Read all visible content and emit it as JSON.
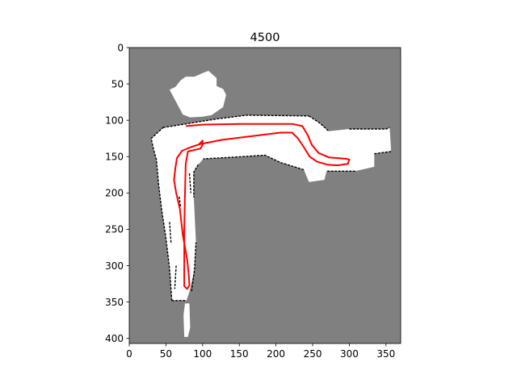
{
  "chart_data": {
    "type": "heatmap",
    "title": "4500",
    "xlabel": "",
    "ylabel": "",
    "xlim": [
      0,
      370
    ],
    "ylim": [
      407,
      0
    ],
    "xticks": [
      0,
      50,
      100,
      150,
      200,
      250,
      300,
      350
    ],
    "yticks": [
      0,
      50,
      100,
      150,
      200,
      250,
      300,
      350,
      400
    ],
    "grid": false,
    "legend": "none",
    "colors": {
      "unknown": "#808080",
      "free": "#ffffff",
      "occupied": "#000000",
      "trajectory": "#ff0000"
    },
    "map_regions": {
      "free_polygons": [
        [
          [
            46,
            110
          ],
          [
            120,
            98
          ],
          [
            160,
            93
          ],
          [
            245,
            94
          ],
          [
            260,
            104
          ],
          [
            272,
            115
          ],
          [
            300,
            112
          ],
          [
            350,
            112
          ],
          [
            355,
            110
          ],
          [
            357,
            143
          ],
          [
            334,
            146
          ],
          [
            334,
            164
          ],
          [
            308,
            170
          ],
          [
            269,
            170
          ],
          [
            266,
            182
          ],
          [
            245,
            185
          ],
          [
            238,
            168
          ],
          [
            206,
            158
          ],
          [
            185,
            148
          ],
          [
            138,
            151
          ],
          [
            101,
            153
          ],
          [
            94,
            161
          ],
          [
            88,
            171
          ],
          [
            88,
            206
          ],
          [
            91,
            268
          ],
          [
            89,
            305
          ],
          [
            82,
            336
          ],
          [
            78,
            348
          ],
          [
            58,
            348
          ],
          [
            55,
            304
          ],
          [
            50,
            262
          ],
          [
            44,
            222
          ],
          [
            40,
            188
          ],
          [
            37,
            154
          ],
          [
            33,
            140
          ],
          [
            30,
            125
          ]
        ],
        [
          [
            73,
            92
          ],
          [
            55,
            58
          ],
          [
            63,
            54
          ],
          [
            70,
            45
          ],
          [
            77,
            40
          ],
          [
            89,
            40
          ],
          [
            100,
            35
          ],
          [
            108,
            32
          ],
          [
            119,
            42
          ],
          [
            119,
            53
          ],
          [
            128,
            57
          ],
          [
            132,
            65
          ],
          [
            128,
            82
          ],
          [
            112,
            93
          ],
          [
            100,
            95
          ],
          [
            83,
            96
          ]
        ],
        [
          [
            76,
            352
          ],
          [
            82,
            352
          ],
          [
            83,
            385
          ],
          [
            80,
            398
          ],
          [
            75,
            398
          ],
          [
            74,
            368
          ]
        ]
      ],
      "occupied_polylines": [
        [
          [
            33,
            140
          ],
          [
            30,
            125
          ],
          [
            46,
            110
          ]
        ],
        [
          [
            46,
            110
          ],
          [
            120,
            98
          ],
          [
            160,
            93
          ],
          [
            245,
            94
          ]
        ],
        [
          [
            245,
            94
          ],
          [
            260,
            104
          ],
          [
            272,
            115
          ]
        ],
        [
          [
            300,
            112
          ],
          [
            350,
            112
          ],
          [
            355,
            110
          ]
        ],
        [
          [
            357,
            143
          ],
          [
            334,
            146
          ]
        ],
        [
          [
            308,
            170
          ],
          [
            269,
            170
          ]
        ],
        [
          [
            238,
            168
          ],
          [
            206,
            158
          ],
          [
            185,
            148
          ],
          [
            138,
            151
          ],
          [
            101,
            153
          ]
        ],
        [
          [
            94,
            161
          ],
          [
            88,
            171
          ],
          [
            88,
            206
          ]
        ],
        [
          [
            58,
            348
          ],
          [
            55,
            304
          ],
          [
            50,
            262
          ],
          [
            44,
            222
          ],
          [
            40,
            188
          ],
          [
            37,
            154
          ],
          [
            33,
            140
          ]
        ],
        [
          [
            85,
            335
          ],
          [
            89,
            305
          ],
          [
            91,
            268
          ]
        ],
        [
          [
            58,
            348
          ],
          [
            78,
            348
          ]
        ],
        [
          [
            64,
            300
          ],
          [
            62,
            332
          ]
        ],
        [
          [
            55,
            240
          ],
          [
            57,
            270
          ]
        ],
        [
          [
            68,
            205
          ],
          [
            70,
            220
          ]
        ],
        [
          [
            82,
            173
          ],
          [
            84,
            200
          ]
        ]
      ]
    },
    "series": [
      {
        "values": [
          [
            78,
            108
          ],
          [
            100,
            106
          ],
          [
            150,
            105
          ],
          [
            200,
            105
          ],
          [
            222,
            105
          ],
          [
            236,
            108
          ],
          [
            243,
            120
          ],
          [
            249,
            134
          ],
          [
            258,
            145
          ],
          [
            272,
            151
          ],
          [
            296,
            153
          ],
          [
            300,
            154
          ],
          [
            298,
            160
          ],
          [
            284,
            162
          ],
          [
            270,
            161
          ],
          [
            256,
            157
          ],
          [
            246,
            150
          ],
          [
            238,
            137
          ],
          [
            230,
            125
          ],
          [
            222,
            117
          ],
          [
            206,
            117
          ],
          [
            166,
            122
          ],
          [
            126,
            127
          ],
          [
            96,
            133
          ],
          [
            84,
            137
          ],
          [
            72,
            142
          ],
          [
            65,
            152
          ],
          [
            63,
            165
          ],
          [
            61,
            182
          ],
          [
            64,
            200
          ],
          [
            69,
            222
          ],
          [
            73,
            258
          ],
          [
            79,
            292
          ],
          [
            81,
            312
          ],
          [
            82,
            327
          ],
          [
            79,
            332
          ],
          [
            75,
            328
          ],
          [
            75,
            300
          ],
          [
            75,
            250
          ],
          [
            76,
            200
          ],
          [
            77,
            160
          ],
          [
            80,
            143
          ],
          [
            97,
            139
          ],
          [
            100,
            134
          ],
          [
            100,
            128
          ],
          [
            95,
            133
          ]
        ]
      }
    ]
  }
}
